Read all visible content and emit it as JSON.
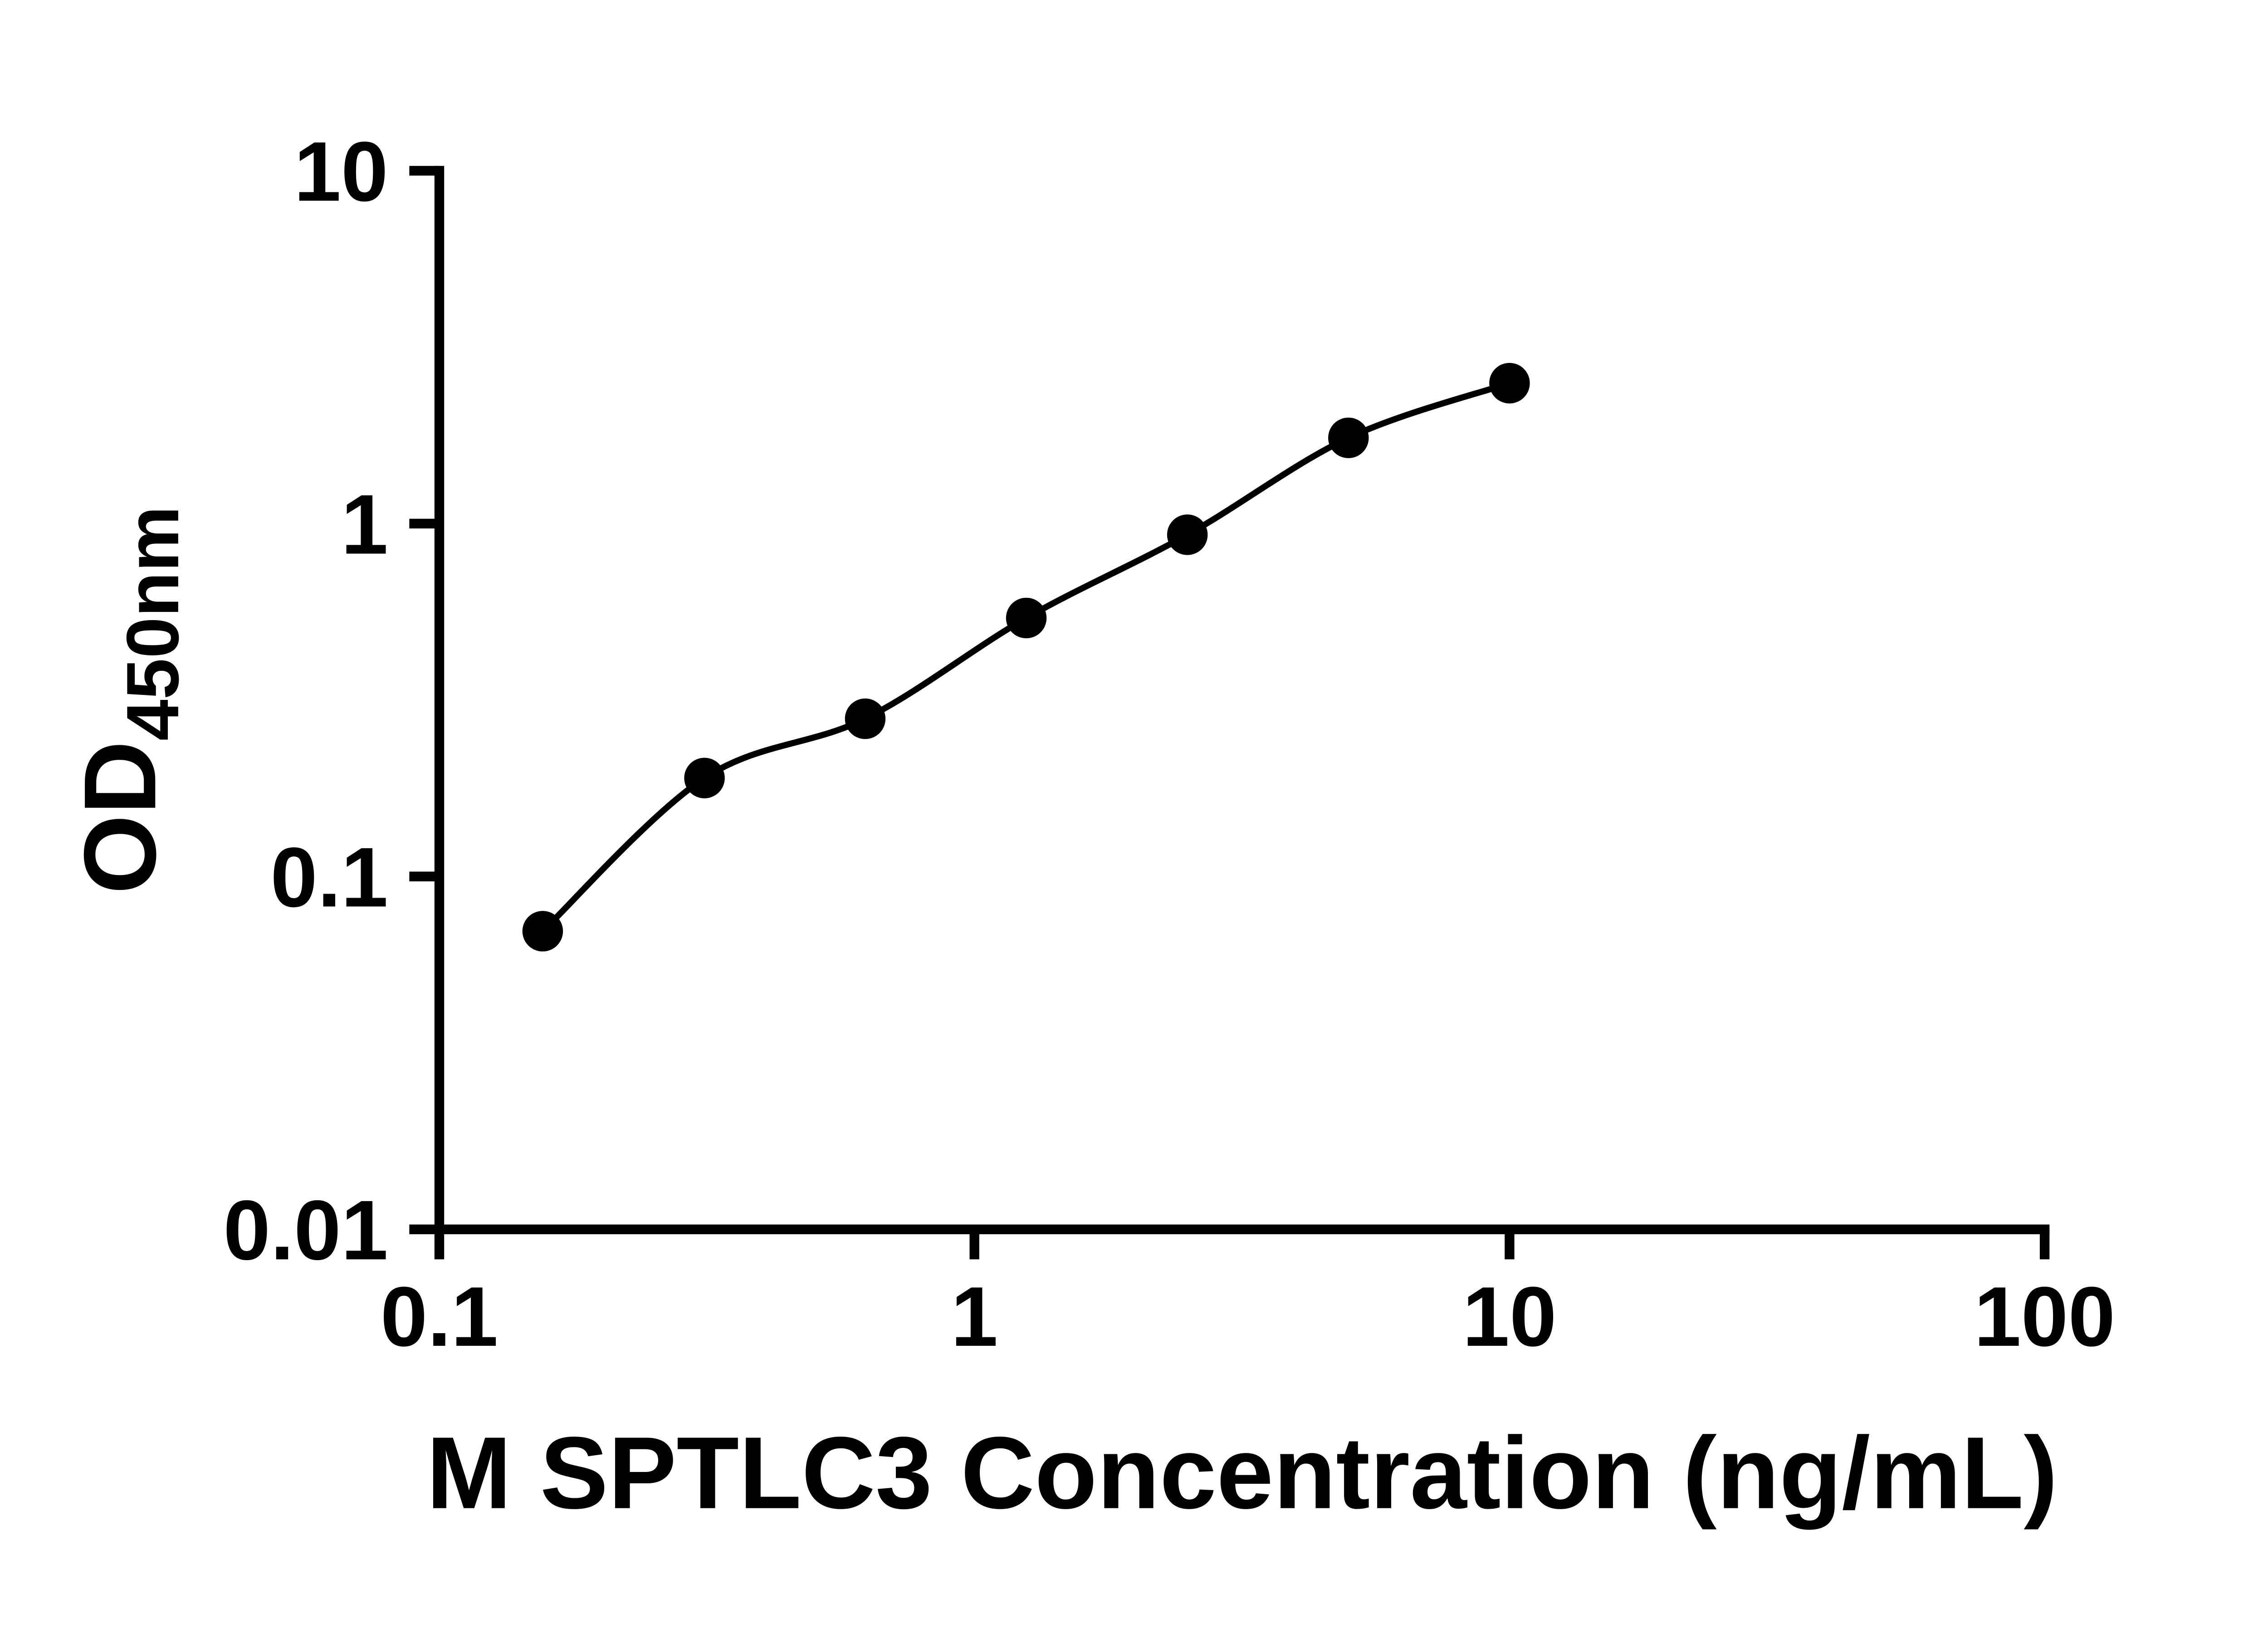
{
  "figure": {
    "background_color": "#ffffff"
  },
  "chart_data": {
    "type": "scatter",
    "title": "",
    "xlabel": "M SPTLC3 Concentration (ng/mL)",
    "ylabel": "OD450nm",
    "ylabel_parts": {
      "main": "OD",
      "sub": "450nm"
    },
    "x_scale": "log10",
    "y_scale": "log10",
    "xlim": [
      0.1,
      100
    ],
    "ylim": [
      0.01,
      10
    ],
    "x_ticks": [
      0.1,
      1,
      10,
      100
    ],
    "x_tick_labels": [
      "0.1",
      "1",
      "10",
      "100"
    ],
    "y_ticks": [
      0.01,
      0.1,
      1,
      10
    ],
    "y_tick_labels": [
      "0.01",
      "0.1",
      "1",
      "10"
    ],
    "grid": false,
    "legend": false,
    "axis_color": "#000000",
    "series": [
      {
        "kind": "scatter-with-fit-curve",
        "x": [
          0.156,
          0.313,
          0.625,
          1.25,
          2.5,
          5,
          10
        ],
        "y": [
          0.07,
          0.19,
          0.28,
          0.54,
          0.93,
          1.75,
          2.5
        ],
        "marker": "filled-circle",
        "marker_color": "#000000",
        "curve_color": "#000000"
      }
    ]
  }
}
